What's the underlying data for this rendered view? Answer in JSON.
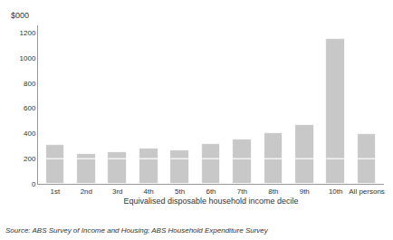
{
  "chart_data": {
    "type": "bar",
    "categories": [
      "1st",
      "2nd",
      "3rd",
      "4th",
      "5th",
      "6th",
      "7th",
      "8th",
      "9th",
      "10th",
      "All persons"
    ],
    "values": [
      310,
      235,
      255,
      280,
      265,
      315,
      350,
      400,
      470,
      1150,
      395
    ],
    "dividers": [
      200,
      200,
      200,
      200,
      200,
      200,
      200,
      200,
      200,
      200,
      200
    ],
    "color": "#c8c8c8",
    "xlabel": "Equivalised disposable household income decile",
    "ylabel": "$000",
    "ylim": [
      0,
      1260
    ],
    "yticks": [
      0,
      200,
      400,
      600,
      800,
      1000,
      1200
    ],
    "grid": false,
    "annotations": [
      "Source: ABS Survey of Income and Housing; ABS Household Expenditure Survey"
    ]
  }
}
